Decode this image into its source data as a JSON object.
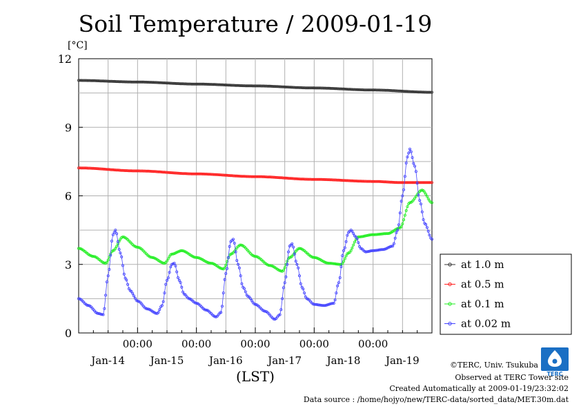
{
  "chart_data": {
    "type": "line",
    "title": "Soil Temperature / 2009-01-19",
    "ylabel_unit": "[°C]",
    "xlabel": "(LST)",
    "ylim": [
      0,
      12
    ],
    "yticks": [
      "0",
      "3",
      "6",
      "9",
      "12"
    ],
    "x_time_labels": [
      "00:00",
      "00:00",
      "00:00",
      "00:00",
      "00:00"
    ],
    "x_day_labels": [
      "Jan-14",
      "Jan-15",
      "Jan-16",
      "Jan-17",
      "Jan-18",
      "Jan-19"
    ],
    "x_range_hours": [
      0,
      144
    ],
    "grid": true,
    "legend_position": "right",
    "series": [
      {
        "name": "at 1.0 m",
        "color": "#333333",
        "x": [
          0,
          24,
          48,
          72,
          96,
          120,
          144
        ],
        "y": [
          11.05,
          10.98,
          10.89,
          10.81,
          10.72,
          10.63,
          10.53
        ]
      },
      {
        "name": "at 0.5 m",
        "color": "#ff2020",
        "x": [
          0,
          24,
          48,
          72,
          96,
          120,
          132,
          144
        ],
        "y": [
          7.22,
          7.09,
          6.96,
          6.84,
          6.72,
          6.63,
          6.58,
          6.58
        ]
      },
      {
        "name": "at 0.1 m",
        "color": "#22ee22",
        "x": [
          0,
          6,
          11,
          14,
          18,
          24,
          30,
          35,
          38,
          42,
          48,
          54,
          59,
          62,
          66,
          72,
          78,
          83,
          86,
          90,
          96,
          102,
          107,
          110,
          114,
          120,
          126,
          131,
          135,
          140,
          144
        ],
        "y": [
          3.7,
          3.35,
          3.05,
          3.6,
          4.2,
          3.75,
          3.3,
          3.05,
          3.45,
          3.6,
          3.3,
          3.05,
          2.8,
          3.45,
          3.85,
          3.35,
          2.95,
          2.7,
          3.3,
          3.7,
          3.3,
          3.05,
          3.0,
          3.5,
          4.2,
          4.3,
          4.35,
          4.6,
          5.7,
          6.25,
          5.7
        ]
      },
      {
        "name": "at 0.02 m",
        "color": "#4444ff",
        "x": [
          0,
          4,
          8,
          10,
          12,
          14,
          15,
          17,
          19,
          21,
          24,
          28,
          32,
          34,
          36,
          38,
          39,
          41,
          43,
          45,
          48,
          52,
          56,
          58,
          60,
          62,
          63,
          65,
          67,
          69,
          72,
          76,
          80,
          82,
          84,
          86,
          87,
          89,
          91,
          93,
          96,
          100,
          104,
          106,
          108,
          110,
          111,
          113,
          115,
          117,
          120,
          124,
          128,
          130,
          132,
          134,
          135,
          137,
          139,
          141,
          144
        ],
        "y": [
          1.5,
          1.2,
          0.85,
          0.8,
          2.5,
          4.3,
          4.5,
          3.5,
          2.4,
          1.85,
          1.4,
          1.05,
          0.85,
          1.2,
          2.3,
          3.0,
          3.05,
          2.3,
          1.7,
          1.5,
          1.3,
          1.0,
          0.7,
          0.9,
          2.6,
          4.0,
          4.1,
          3.0,
          2.0,
          1.6,
          1.25,
          0.95,
          0.6,
          0.8,
          2.2,
          3.8,
          3.9,
          3.0,
          2.0,
          1.5,
          1.25,
          1.2,
          1.3,
          2.2,
          3.6,
          4.4,
          4.5,
          4.2,
          3.7,
          3.55,
          3.6,
          3.65,
          3.8,
          4.5,
          6.0,
          7.7,
          8.05,
          7.3,
          5.8,
          4.8,
          4.1
        ]
      }
    ]
  },
  "credits": {
    "line1": "©TERC, Univ. Tsukuba",
    "line2": "Observed at TERC Tower site",
    "line3": "Created Automatically at 2009-01-19/23:32:02",
    "line4": "Data source : /home/hojyo/new/TERC-data/sorted_data/MET.30m.dat",
    "logo_text": "TERC",
    "logo_color": "#1a6fc4"
  }
}
